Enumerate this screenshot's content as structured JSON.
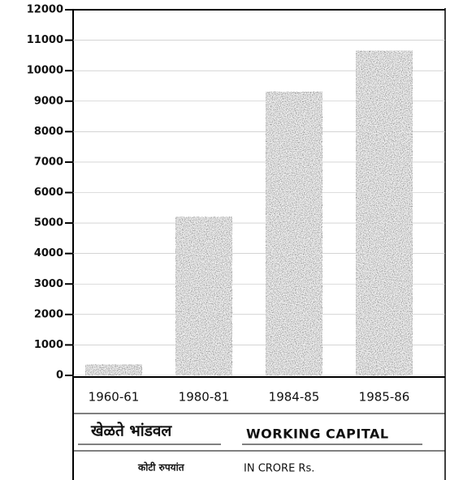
{
  "chart_data": {
    "type": "bar",
    "title_marathi": "खेळते भांडवल",
    "title": "WORKING CAPITAL",
    "subtitle_marathi": "कोटी रुपयांत",
    "subtitle": "IN CRORE Rs.",
    "categories": [
      "1960-61",
      "1980-81",
      "1984-85",
      "1985-86"
    ],
    "values": [
      350,
      5200,
      9300,
      10650
    ],
    "color": "#6e6e6e",
    "ylim": [
      0,
      12000
    ],
    "yticks": [
      0,
      1000,
      2000,
      3000,
      4000,
      5000,
      6000,
      7000,
      8000,
      9000,
      10000,
      11000,
      12000
    ],
    "grid": true
  }
}
